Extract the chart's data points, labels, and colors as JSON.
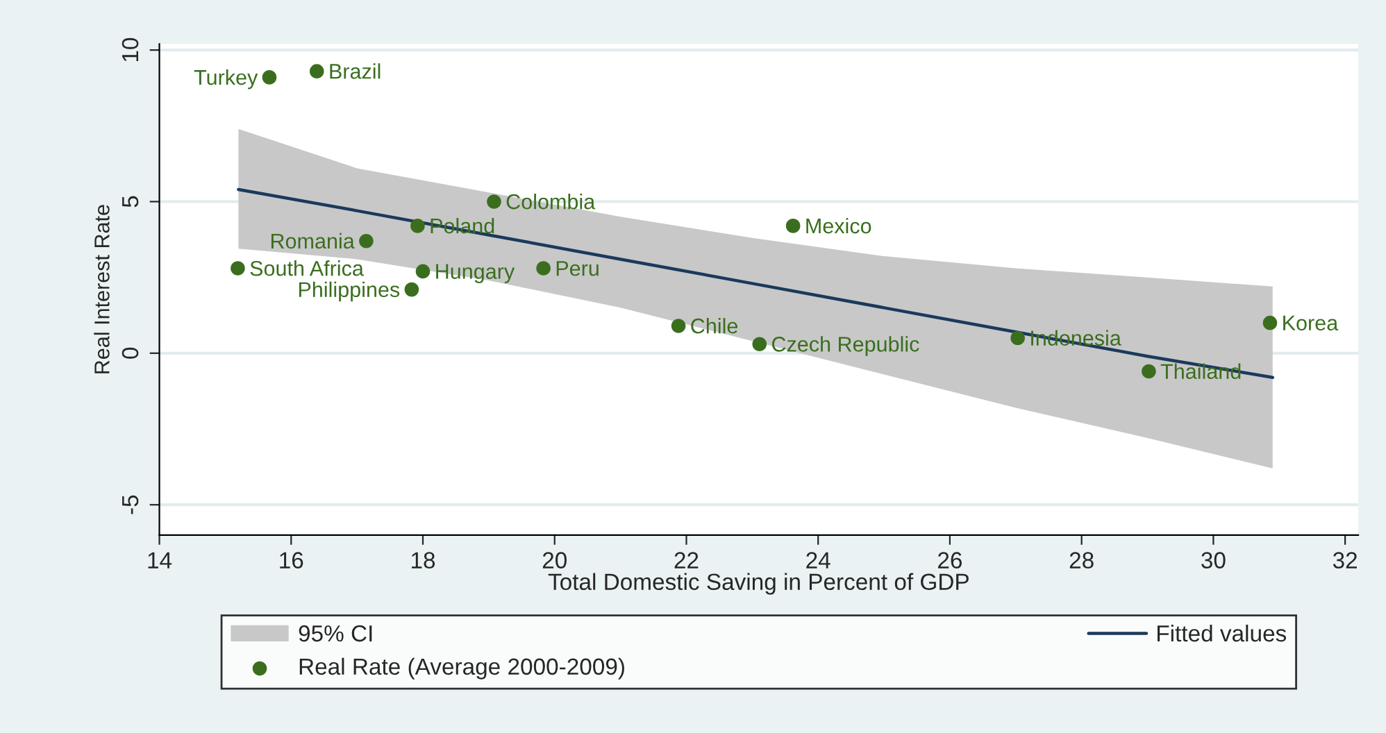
{
  "chart_data": {
    "type": "scatter",
    "xlabel": "Total Domestic Saving in Percent of GDP",
    "ylabel": "Real Interest Rate",
    "xlim": [
      14,
      32.2
    ],
    "xticks": [
      14,
      16,
      18,
      20,
      22,
      24,
      26,
      28,
      30,
      32
    ],
    "ylim": [
      -6,
      10.2
    ],
    "yticks": [
      -5,
      0,
      5,
      10
    ],
    "grid": "y",
    "legend": "bottom",
    "series": [
      {
        "name": "Fitted values",
        "type": "line",
        "color": "#1a3a5c",
        "x": [
          15.2,
          17,
          19,
          21,
          23,
          25,
          27,
          29,
          30.9
        ],
        "values": [
          5.4,
          4.7,
          3.9,
          3.1,
          2.3,
          1.5,
          0.7,
          -0.1,
          -0.8
        ],
        "lower": [
          3.45,
          3.1,
          2.4,
          1.5,
          0.4,
          -0.7,
          -1.8,
          -2.8,
          -3.8
        ],
        "upper": [
          7.4,
          6.1,
          5.3,
          4.5,
          3.8,
          3.2,
          2.8,
          2.5,
          2.2
        ]
      },
      {
        "name": "Real Rate (Average 2000-2009)",
        "color": "#3a6e1e",
        "marker": "circle",
        "x": [
          15.67,
          16.39,
          19.08,
          23.62,
          17.92,
          17.14,
          15.19,
          18.0,
          19.83,
          17.83,
          21.88,
          23.11,
          27.03,
          29.02,
          30.86
        ],
        "values": [
          9.1,
          9.3,
          5.0,
          4.2,
          4.2,
          3.7,
          2.8,
          2.7,
          2.8,
          2.1,
          0.9,
          0.3,
          0.5,
          -0.6,
          1.0
        ]
      }
    ],
    "annotations": [
      "95% CI",
      {
        "text": "Turkey",
        "x": 15.67,
        "y": 9.1
      },
      {
        "text": "Brazil",
        "x": 16.39,
        "y": 9.3
      },
      {
        "text": "Colombia",
        "x": 19.08,
        "y": 5.0
      },
      {
        "text": "Mexico",
        "x": 23.62,
        "y": 4.2
      },
      {
        "text": "Poland",
        "x": 17.92,
        "y": 4.2
      },
      {
        "text": "Romania",
        "x": 17.14,
        "y": 3.7
      },
      {
        "text": "South Africa",
        "x": 15.19,
        "y": 2.8
      },
      {
        "text": "Hungary",
        "x": 18.0,
        "y": 2.7
      },
      {
        "text": "Peru",
        "x": 19.83,
        "y": 2.8
      },
      {
        "text": "Philippines",
        "x": 17.83,
        "y": 2.1
      },
      {
        "text": "Chile",
        "x": 21.88,
        "y": 0.9
      },
      {
        "text": "Czech Republic",
        "x": 23.11,
        "y": 0.3
      },
      {
        "text": "Indonesia",
        "x": 27.03,
        "y": 0.5
      },
      {
        "text": "Thailand",
        "x": 29.02,
        "y": -0.6
      },
      {
        "text": "Korea",
        "x": 30.86,
        "y": 1.0
      }
    ]
  }
}
